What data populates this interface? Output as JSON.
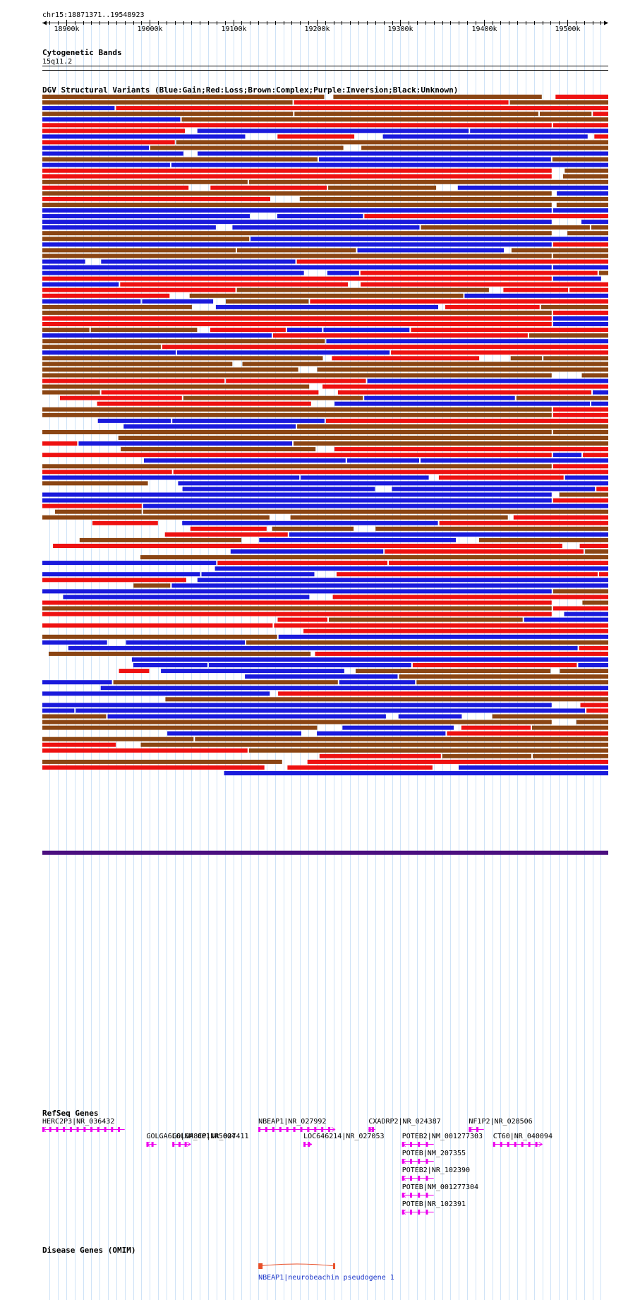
{
  "coordinate_label": "chr15:18871371..19548923",
  "region": {
    "start": 18871371,
    "end": 19548923
  },
  "ruler": {
    "ticks": [
      {
        "pos": 18900000,
        "label": "18900k"
      },
      {
        "pos": 19000000,
        "label": "19000k"
      },
      {
        "pos": 19100000,
        "label": "19100k"
      },
      {
        "pos": 19200000,
        "label": "19200k"
      },
      {
        "pos": 19300000,
        "label": "19300k"
      },
      {
        "pos": 19400000,
        "label": "19400k"
      },
      {
        "pos": 19500000,
        "label": "19500k"
      }
    ],
    "grid_step_bp": 10000
  },
  "cytoband": {
    "title": "Cytogenetic Bands",
    "band": "15q11.2"
  },
  "dgv": {
    "title": "DGV Structural Variants (Blue:Gain;Red:Loss;Brown:Complex;Purple:Inversion;Black:Unknown)",
    "colors": {
      "gain": "#1a1adc",
      "loss": "#ee1111",
      "complex": "#8b4513",
      "inversion": "#4b0f80",
      "unknown": "#000000"
    },
    "track_count": 120
  },
  "refseq": {
    "title": "RefSeq Genes",
    "color": "#ee00ee",
    "genes": [
      {
        "label": "HERC2P3|NR_036432",
        "start": 18871371,
        "end": 18970000,
        "strand": "-"
      },
      {
        "label": "GOLGA6L6|NM_001145004",
        "start": 18996000,
        "end": 19008000,
        "strand": "-"
      },
      {
        "label": "GOLGA8CP|NR_027411",
        "start": 19027000,
        "end": 19049000,
        "strand": "+"
      },
      {
        "label": "NBEAP1|NR_027992",
        "start": 19130000,
        "end": 19222000,
        "strand": "+"
      },
      {
        "label": "LOC646214|NR_027053",
        "start": 19184000,
        "end": 19194000,
        "strand": "+"
      },
      {
        "label": "CXADRP2|NR_024387",
        "start": 19262000,
        "end": 19270000,
        "strand": "-"
      },
      {
        "label": "NF1P2|NR_028506",
        "start": 19382000,
        "end": 19400000,
        "strand": "-"
      },
      {
        "label": "POTEB2|NM_001277303",
        "start": 19302000,
        "end": 19340000,
        "strand": "-"
      },
      {
        "label": "CT60|NR_040094",
        "start": 19411000,
        "end": 19470000,
        "strand": "+"
      },
      {
        "label": "POTEB|NM_207355",
        "start": 19302000,
        "end": 19340000,
        "strand": "-"
      },
      {
        "label": "POTEB2|NR_102390",
        "start": 19302000,
        "end": 19340000,
        "strand": "-"
      },
      {
        "label": "POTEB|NM_001277304",
        "start": 19302000,
        "end": 19340000,
        "strand": "-"
      },
      {
        "label": "POTEB|NR_102391",
        "start": 19302000,
        "end": 19340000,
        "strand": "-"
      }
    ]
  },
  "omim": {
    "title": "Disease Genes (OMIM)",
    "color": "#e8502a",
    "genes": [
      {
        "label": "NBEAP1|neurobeachin pseudogene 1",
        "start": 19130000,
        "end": 19222000
      }
    ]
  }
}
